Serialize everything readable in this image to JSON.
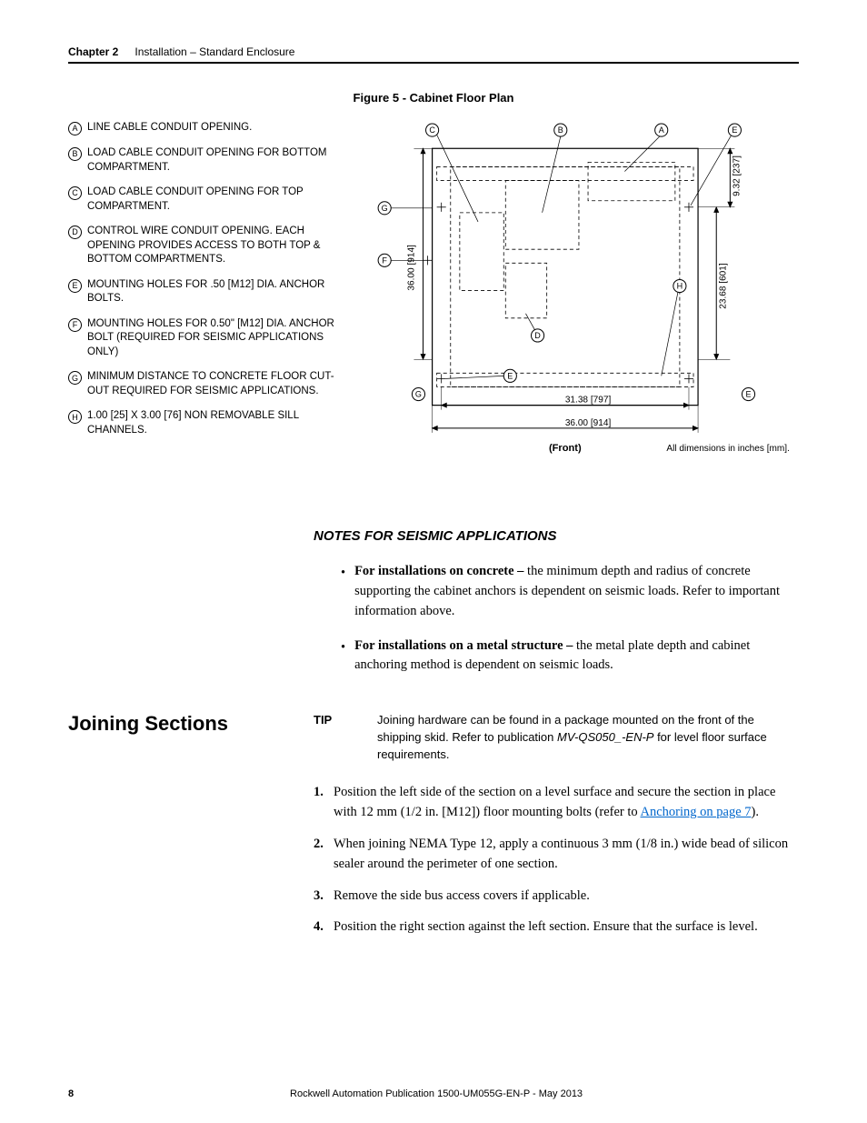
{
  "header": {
    "chapter_label": "Chapter 2",
    "chapter_title": "Installation – Standard Enclosure"
  },
  "figure": {
    "title": "Figure 5 - Cabinet Floor Plan",
    "legend": [
      {
        "letter": "A",
        "text": "LINE CABLE CONDUIT OPENING."
      },
      {
        "letter": "B",
        "text": "LOAD CABLE CONDUIT OPENING FOR BOTTOM COMPARTMENT."
      },
      {
        "letter": "C",
        "text": "LOAD CABLE CONDUIT OPENING FOR TOP COMPARTMENT."
      },
      {
        "letter": "D",
        "text": "CONTROL WIRE CONDUIT OPENING. EACH OPENING PROVIDES ACCESS TO BOTH TOP & BOTTOM COMPARTMENTS."
      },
      {
        "letter": "E",
        "text": "MOUNTING HOLES FOR .50 [M12] DIA. ANCHOR BOLTS."
      },
      {
        "letter": "F",
        "text": "MOUNTING HOLES FOR 0.50\" [M12] DIA. ANCHOR BOLT (REQUIRED FOR SEISMIC APPLICATIONS ONLY)"
      },
      {
        "letter": "G",
        "text": "MINIMUM DISTANCE TO CONCRETE FLOOR CUT-OUT REQUIRED FOR SEISMIC APPLICATIONS."
      },
      {
        "letter": "H",
        "text": "1.00 [25] X 3.00 [76] NON REMOVABLE SILL CHANNELS."
      }
    ],
    "diagram": {
      "front_label": "(Front)",
      "dim_note": "All dimensions in inches [mm].",
      "dim_9_32": "9.32 [237]",
      "dim_36_00_v": "36.00 [914]",
      "dim_23_68": "23.68 [601]",
      "dim_31_38": "31.38 [797]",
      "dim_36_00_h": "36.00 [914]",
      "callouts": [
        "A",
        "B",
        "C",
        "D",
        "E",
        "F",
        "G",
        "H"
      ]
    }
  },
  "seismic": {
    "heading": "NOTES FOR SEISMIC APPLICATIONS",
    "notes": [
      {
        "bold": "For installations on concrete – ",
        "rest": "the minimum depth and radius of concrete supporting the cabinet anchors is dependent on seismic loads. Refer to important information above."
      },
      {
        "bold": "For installations on a metal structure – ",
        "rest": "the metal plate depth and cabinet anchoring method is dependent on seismic loads."
      }
    ]
  },
  "joining": {
    "heading": "Joining Sections",
    "tip_label": "TIP",
    "tip_text_1": "Joining hardware can be found in a package mounted on the front of the shipping skid. Refer to publication ",
    "tip_pub": "MV-QS050_-EN-P",
    "tip_text_2": " for level floor surface requirements.",
    "steps": [
      {
        "num": "1.",
        "pre": "Position the left side of the section on a level surface and secure the section in place with 12 mm (1/2 in. [M12]) floor mounting bolts (refer to ",
        "link": "Anchoring on page 7",
        "post": ")."
      },
      {
        "num": "2.",
        "text": "When joining NEMA Type 12, apply a continuous 3 mm (1/8 in.) wide bead of silicon sealer around the perimeter of one section."
      },
      {
        "num": "3.",
        "text": "Remove the side bus access covers if applicable."
      },
      {
        "num": "4.",
        "text": "Position the right section against the left section. Ensure that the surface is level."
      }
    ]
  },
  "footer": {
    "page": "8",
    "text": "Rockwell Automation Publication 1500-UM055G-EN-P - May 2013"
  }
}
